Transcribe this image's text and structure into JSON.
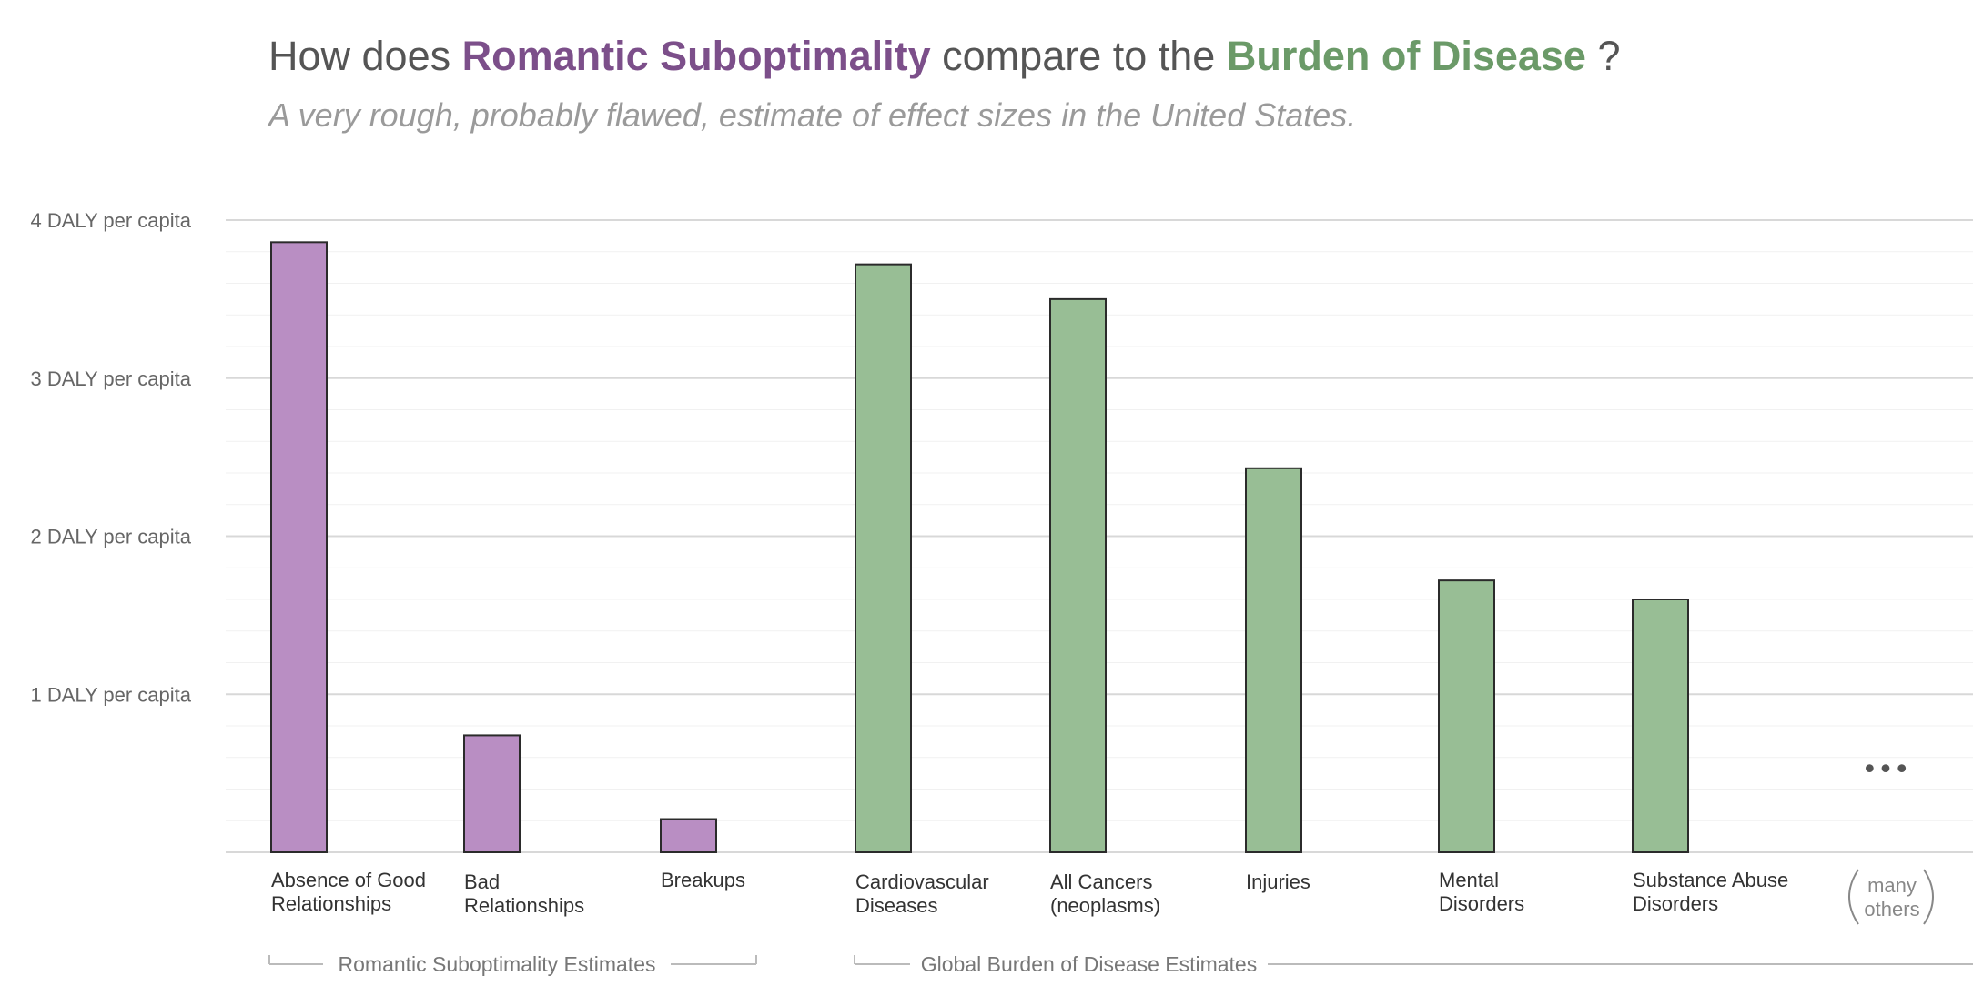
{
  "title": {
    "prefix": "How does ",
    "highlight1": "Romantic Suboptimality",
    "middle": " compare to the ",
    "highlight2": "Burden of Disease",
    "suffix": " ?"
  },
  "subtitle": "A very rough, probably flawed, estimate of effect sizes in the United States.",
  "colors": {
    "romantic": "#b98ec3",
    "disease": "#98be95",
    "romantic_title": "#7c4f8a",
    "disease_title": "#6b9a68"
  },
  "chart_data": {
    "type": "bar",
    "categories": [
      [
        "Absence of Good",
        "Relationships"
      ],
      [
        "Bad",
        "Relationships"
      ],
      [
        "Breakups"
      ],
      [
        "Cardiovascular",
        "Diseases"
      ],
      [
        "All Cancers",
        "(neoplasms)"
      ],
      [
        "Injuries"
      ],
      [
        "Mental",
        "Disorders"
      ],
      [
        "Substance Abuse",
        "Disorders"
      ]
    ],
    "values": [
      3.86,
      0.74,
      0.21,
      3.72,
      3.5,
      2.43,
      1.72,
      1.6
    ],
    "groups": [
      "romantic",
      "romantic",
      "romantic",
      "disease",
      "disease",
      "disease",
      "disease",
      "disease"
    ],
    "ylim": [
      0,
      4
    ],
    "y_ticks": [
      {
        "value": 1,
        "label": "1 DALY per capita"
      },
      {
        "value": 2,
        "label": "2 DALY per capita"
      },
      {
        "value": 3,
        "label": "3 DALY per capita"
      },
      {
        "value": 4,
        "label": "4 DALY per capita"
      }
    ],
    "group_labels": {
      "romantic": "Romantic Suboptimality Estimates",
      "disease": "Global Burden of Disease Estimates"
    },
    "extra": {
      "marker": "•••",
      "label": [
        "many",
        "others"
      ]
    }
  }
}
